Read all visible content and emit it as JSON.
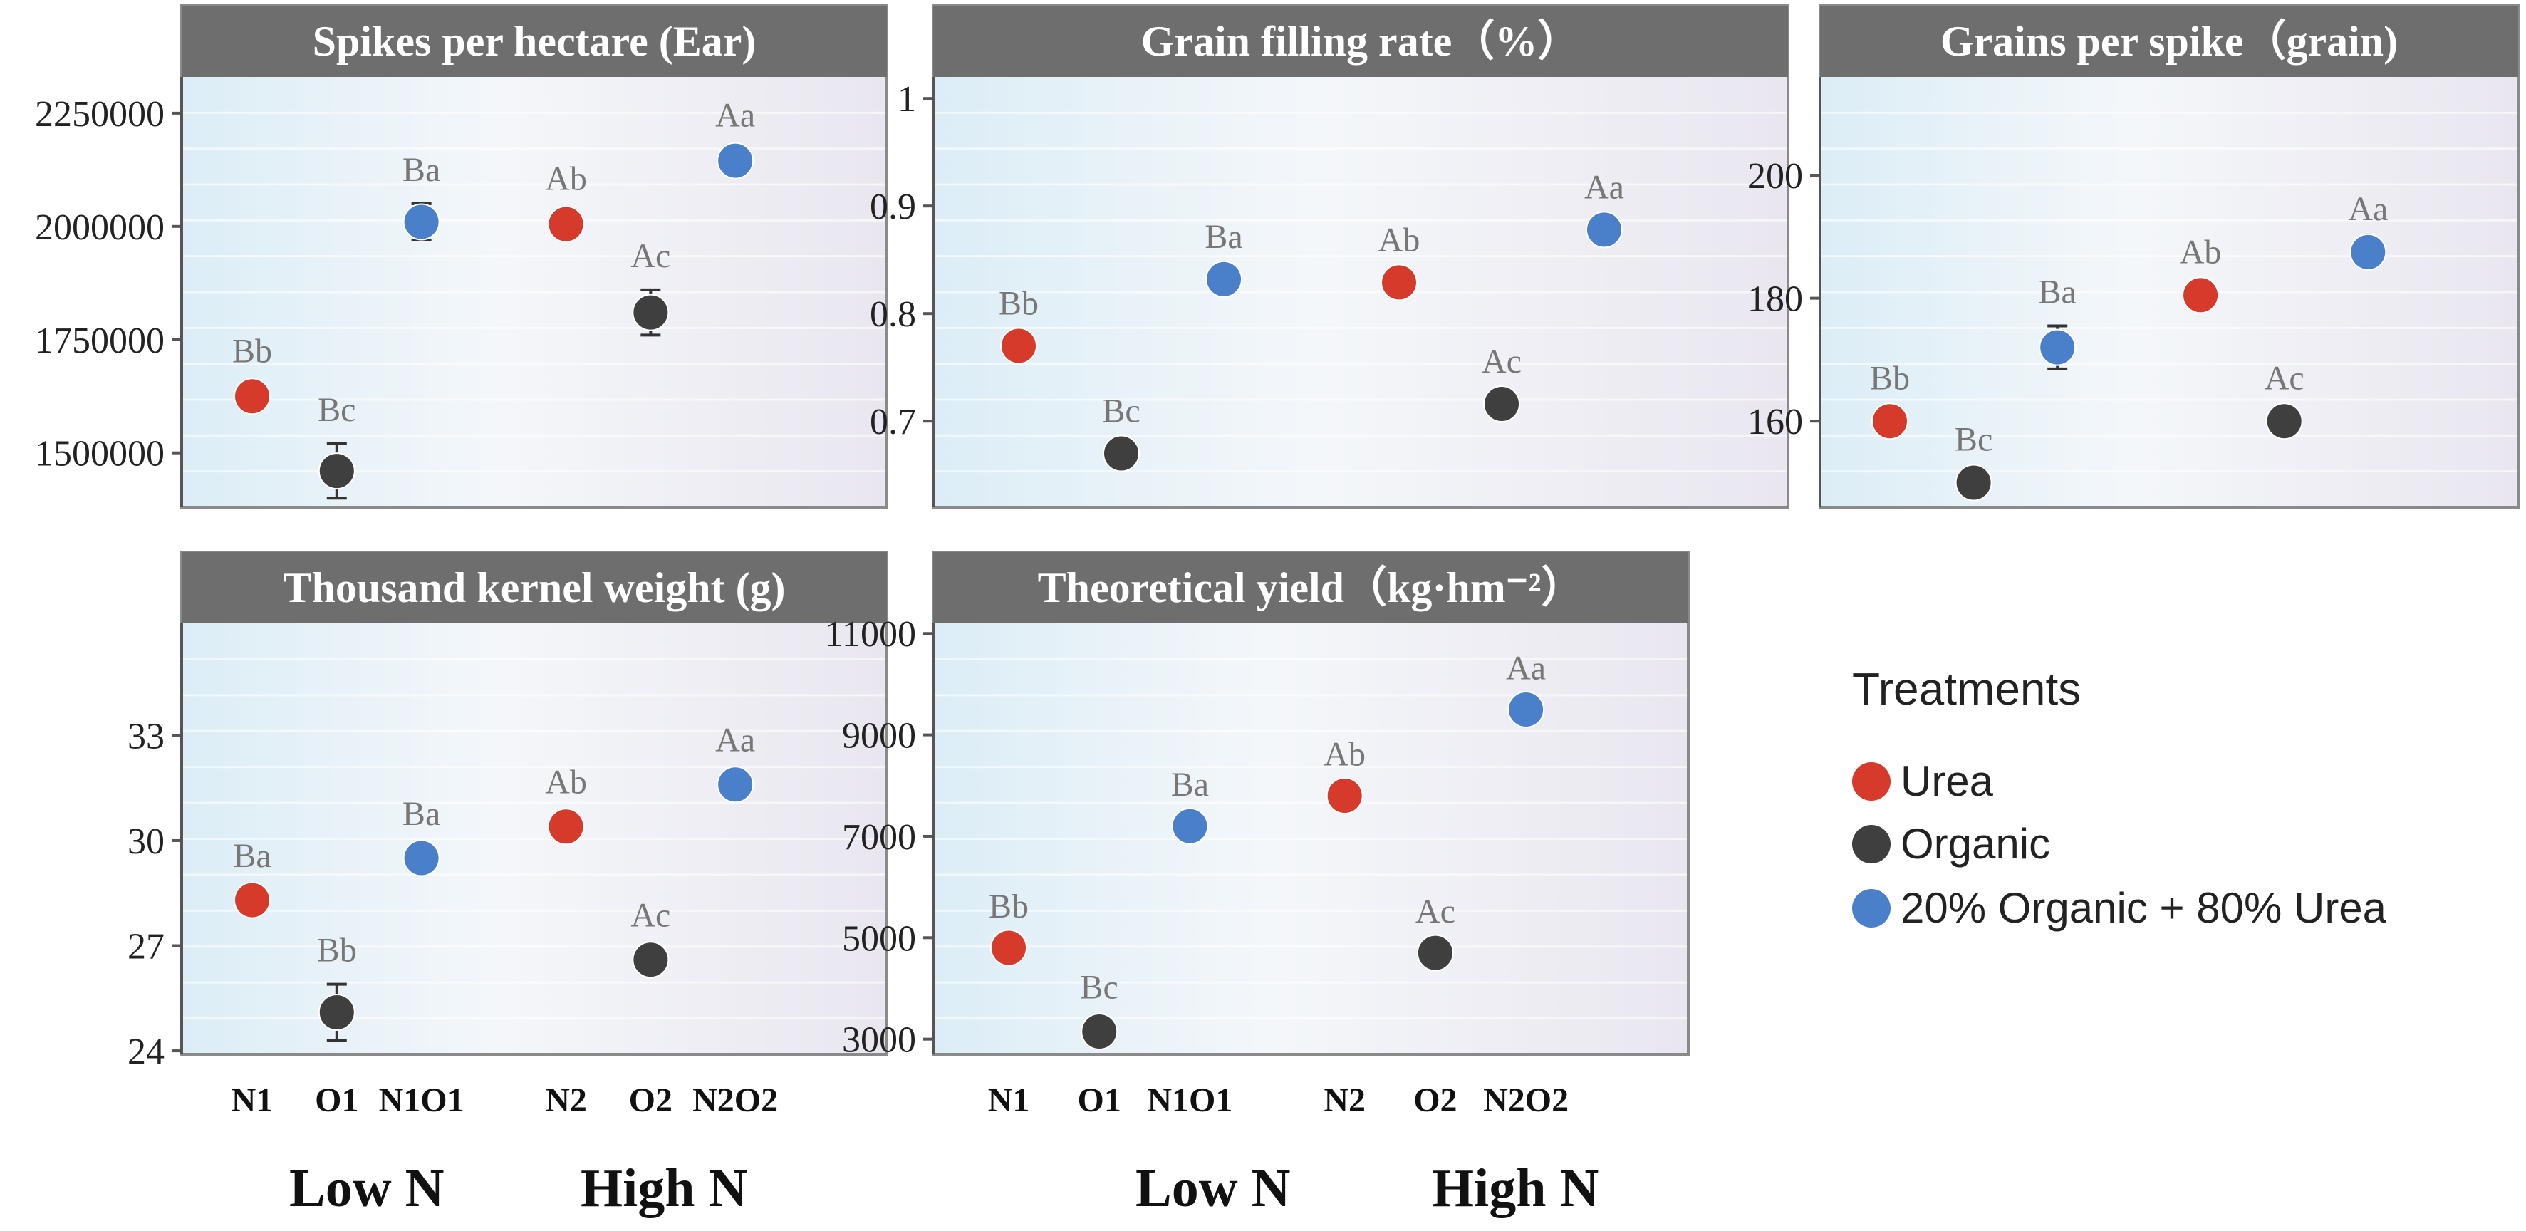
{
  "colors": {
    "urea": "#d63a2a",
    "organic": "#3f3f3f",
    "mixed": "#4a7fc9",
    "header_bg": "#6e6e6e",
    "header_text": "#ffffff",
    "label_text": "#777777"
  },
  "categories": [
    "N1",
    "O1",
    "N1O1",
    "N2",
    "O2",
    "N2O2"
  ],
  "group_labels": [
    "Low N",
    "High N"
  ],
  "legend": {
    "title": "Treatments",
    "items": [
      {
        "label": "Urea",
        "color": "#d63a2a"
      },
      {
        "label": "Organic",
        "color": "#3f3f3f"
      },
      {
        "label": "20% Organic + 80% Urea",
        "color": "#4a7fc9"
      }
    ]
  },
  "chart_data": [
    {
      "type": "scatter",
      "title": "Spikes per hectare (Ear)",
      "ylim": [
        1380000,
        2330000
      ],
      "yticks": [
        1500000,
        1750000,
        2000000,
        2250000
      ],
      "values": [
        1625000,
        1460000,
        2010000,
        2005000,
        1810000,
        2145000
      ],
      "errors": [
        25000,
        60000,
        40000,
        25000,
        50000,
        25000
      ],
      "labels": [
        "Bb",
        "Bc",
        "Ba",
        "Ab",
        "Ac",
        "Aa"
      ],
      "show_xticks": false
    },
    {
      "type": "scatter",
      "title": "Grain filling rate（%）",
      "ylim": [
        0.62,
        1.02
      ],
      "yticks": [
        0.7,
        0.8,
        0.9,
        1.0
      ],
      "values": [
        0.77,
        0.67,
        0.832,
        0.829,
        0.716,
        0.878
      ],
      "errors": [
        0.008,
        0.008,
        0.008,
        0.008,
        0.008,
        0.008
      ],
      "labels": [
        "Bb",
        "Bc",
        "Ba",
        "Ab",
        "Ac",
        "Aa"
      ],
      "show_xticks": false
    },
    {
      "type": "scatter",
      "title": "Grains per spike（grain)",
      "ylim": [
        146,
        216
      ],
      "yticks": [
        160,
        180,
        200
      ],
      "values": [
        160,
        150,
        172,
        180.5,
        160,
        187.5
      ],
      "errors": [
        1.5,
        1.5,
        3.5,
        1.5,
        1.5,
        1.5
      ],
      "labels": [
        "Bb",
        "Bc",
        "Ba",
        "Ab",
        "Ac",
        "Aa"
      ],
      "show_xticks": false
    },
    {
      "type": "scatter",
      "title": "Thousand kernel weight (g)",
      "ylim": [
        23.9,
        36.2
      ],
      "yticks": [
        24,
        27,
        30,
        33
      ],
      "values": [
        28.3,
        25.1,
        29.5,
        30.4,
        26.6,
        31.6
      ],
      "errors": [
        0.3,
        0.8,
        0.3,
        0.3,
        0.3,
        0.3
      ],
      "labels": [
        "Ba",
        "Bb",
        "Ba",
        "Ab",
        "Ac",
        "Aa"
      ],
      "show_xticks": true
    },
    {
      "type": "scatter",
      "title": "Theoretical yield（kg·hm⁻²）",
      "ylim": [
        2700,
        11200
      ],
      "yticks": [
        3000,
        5000,
        7000,
        9000,
        11000
      ],
      "values": [
        4800,
        3150,
        7200,
        7800,
        4700,
        9500
      ],
      "errors": [
        150,
        200,
        150,
        150,
        150,
        150
      ],
      "labels": [
        "Bb",
        "Bc",
        "Ba",
        "Ab",
        "Ac",
        "Aa"
      ],
      "show_xticks": true
    }
  ]
}
